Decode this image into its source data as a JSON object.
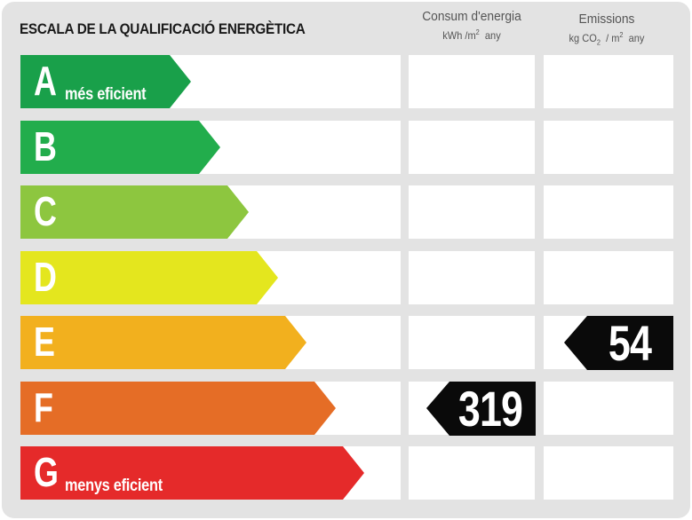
{
  "title": "ESCALA DE LA QUALIFICACIÓ ENERGÈTICA",
  "columns": {
    "consum": {
      "heading": "Consum d'energia",
      "unit_prefix": "kWh /m",
      "unit_exp": "2",
      "unit_suffix": "any"
    },
    "emissions": {
      "heading": "Emissions",
      "unit_prefix": "kg CO",
      "unit_sub": "2",
      "unit_mid": "/ m",
      "unit_exp": "2",
      "unit_suffix": "any"
    }
  },
  "classes": [
    {
      "letter": "A",
      "sublabel": "més eficient",
      "color": "#19a04a"
    },
    {
      "letter": "B",
      "sublabel": "",
      "color": "#22ad4c"
    },
    {
      "letter": "C",
      "sublabel": "",
      "color": "#8dc63f"
    },
    {
      "letter": "D",
      "sublabel": "",
      "color": "#e4e61e"
    },
    {
      "letter": "E",
      "sublabel": "",
      "color": "#f2b01e"
    },
    {
      "letter": "F",
      "sublabel": "",
      "color": "#e56d26"
    },
    {
      "letter": "G",
      "sublabel": "menys eficient",
      "color": "#e52a2a"
    }
  ],
  "ratings": {
    "consum": {
      "value": "319",
      "class": "F"
    },
    "emissions": {
      "value": "54",
      "class": "E"
    }
  }
}
